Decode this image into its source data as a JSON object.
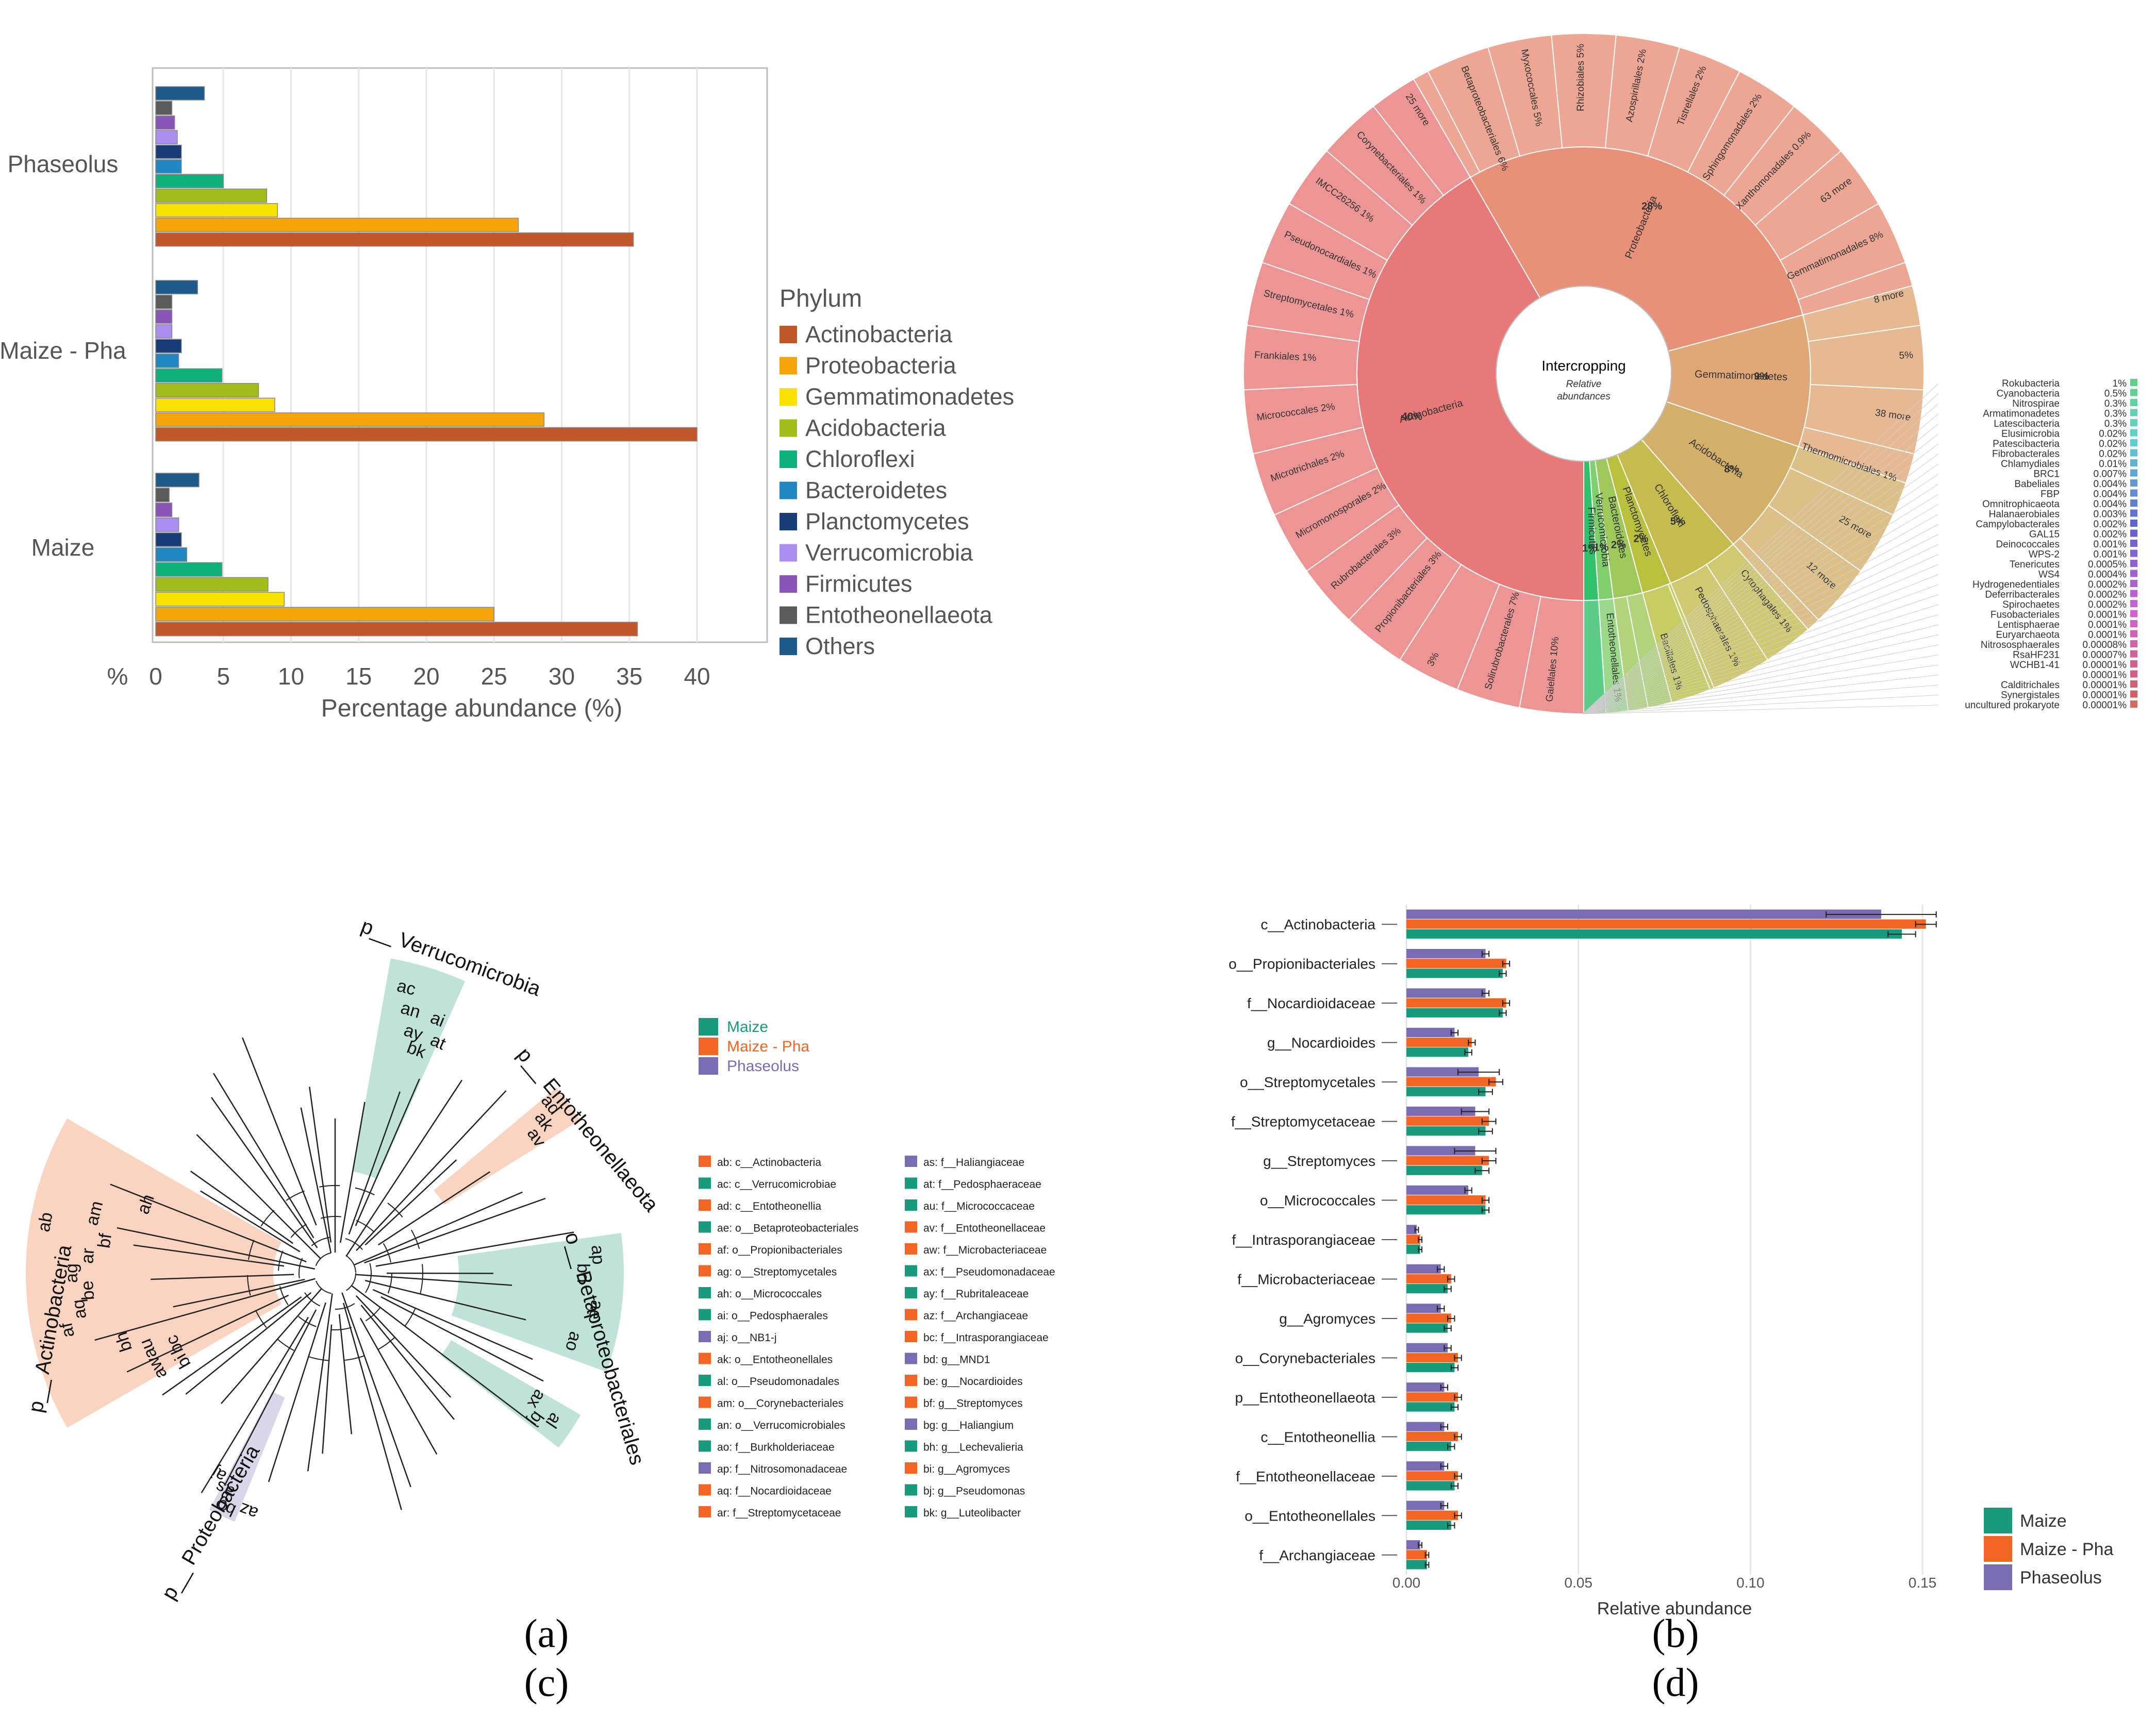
{
  "chart_data": [
    {
      "panel": "(a)",
      "type": "bar",
      "orientation": "horizontal",
      "categories": [
        "Phaseolus",
        "Maize - Pha",
        "Maize"
      ],
      "xlabel": "Percentage abundance (%)",
      "axis_unit_label": "%",
      "xlim": [
        0,
        40
      ],
      "xticks": [
        "0",
        "5",
        "10",
        "15",
        "20",
        "25",
        "30",
        "35",
        "40"
      ],
      "legend_title": "Phylum",
      "grid": "vertical",
      "series": [
        {
          "name": "Actinobacteria",
          "color": "#c0582a",
          "values": [
            35.3,
            40.0,
            35.6
          ]
        },
        {
          "name": "Proteobacteria",
          "color": "#f5a40a",
          "values": [
            26.8,
            28.7,
            25.0
          ]
        },
        {
          "name": "Gemmatimonadetes",
          "color": "#f9e100",
          "values": [
            9.0,
            8.8,
            9.5
          ]
        },
        {
          "name": "Acidobacteria",
          "color": "#9fbe1a",
          "values": [
            8.2,
            7.6,
            8.3
          ]
        },
        {
          "name": "Chloroflexi",
          "color": "#10b07e",
          "values": [
            5.0,
            4.9,
            4.9
          ]
        },
        {
          "name": "Bacteroidetes",
          "color": "#1f87c2",
          "values": [
            1.9,
            1.7,
            2.3
          ]
        },
        {
          "name": "Planctomycetes",
          "color": "#163d78",
          "values": [
            1.9,
            1.9,
            1.9
          ]
        },
        {
          "name": "Verrucomicrobia",
          "color": "#a98ef0",
          "values": [
            1.6,
            1.2,
            1.7
          ]
        },
        {
          "name": "Firmicutes",
          "color": "#8a55b7",
          "values": [
            1.4,
            1.2,
            1.2
          ]
        },
        {
          "name": "Entotheonellaeota",
          "color": "#5a5a5a",
          "values": [
            1.2,
            1.2,
            1.0
          ]
        },
        {
          "name": "Others",
          "color": "#1e5b8c",
          "values": [
            3.6,
            3.1,
            3.2
          ]
        }
      ]
    },
    {
      "panel": "(b)",
      "type": "pie",
      "subtype": "krona",
      "center_title": "Intercropping",
      "center_subtitle": "Relative abundances",
      "inner_ring": [
        {
          "label": "Actinobacteria",
          "pct": "40%",
          "value": 40,
          "color": "#e77a79"
        },
        {
          "label": "Proteobacteria",
          "pct": "28%",
          "value": 28,
          "color": "#e99079"
        },
        {
          "label": "Gemmatimonadetes",
          "pct": "9%",
          "value": 9,
          "color": "#e0a777"
        },
        {
          "label": "Acidobacteria",
          "pct": "8%",
          "value": 8,
          "color": "#d3b06a"
        },
        {
          "label": "Chloroflexi",
          "pct": "5%",
          "value": 5,
          "color": "#c5bc4d"
        },
        {
          "label": "Planctomycetes",
          "pct": "2%",
          "value": 2,
          "color": "#b8c03e"
        },
        {
          "label": "Bacteroidetes",
          "pct": "2%",
          "value": 2,
          "color": "#9dc95a"
        },
        {
          "label": "Verrucomicrobia",
          "pct": "1%",
          "value": 1,
          "color": "#7fcf6c"
        },
        {
          "label": "Firmicutes",
          "pct": "1%",
          "value": 1,
          "color": "#33c06a"
        }
      ],
      "outer_labels": [
        {
          "label": "Gaiellales",
          "pct": "10%"
        },
        {
          "label": "Solirubrobacterales",
          "pct": "7%"
        },
        {
          "label": "",
          "pct": "3%"
        },
        {
          "label": "Propionibacteriales",
          "pct": "3%"
        },
        {
          "label": "Rubrobacterales",
          "pct": "3%"
        },
        {
          "label": "Micromonosporales",
          "pct": "2%"
        },
        {
          "label": "Microtrichales",
          "pct": "2%"
        },
        {
          "label": "Micrococcales",
          "pct": "2%"
        },
        {
          "label": "Frankiales",
          "pct": "1%"
        },
        {
          "label": "Streptomycetales",
          "pct": "1%"
        },
        {
          "label": "Pseudonocardiales",
          "pct": "1%"
        },
        {
          "label": "IMCC26256",
          "pct": "1%"
        },
        {
          "label": "Corynebacteriales",
          "pct": "1%"
        },
        {
          "label": "25 more",
          "pct": ""
        },
        {
          "label": "Betaproteobacteriales",
          "pct": "6%"
        },
        {
          "label": "Myxococcales",
          "pct": "5%"
        },
        {
          "label": "Rhizobiales",
          "pct": "5%"
        },
        {
          "label": "Azospirillales",
          "pct": "2%"
        },
        {
          "label": "Tistrellales",
          "pct": "2%"
        },
        {
          "label": "Sphingomonadales",
          "pct": "2%"
        },
        {
          "label": "Xanthomonadales",
          "pct": "0.9%"
        },
        {
          "label": "63 more",
          "pct": ""
        },
        {
          "label": "Gemmatimonadales",
          "pct": "8%"
        },
        {
          "label": "8 more",
          "pct": ""
        },
        {
          "label": "",
          "pct": "5%"
        },
        {
          "label": "38 more",
          "pct": ""
        },
        {
          "label": "Thermomicrobiales",
          "pct": "1%"
        },
        {
          "label": "25 more",
          "pct": ""
        },
        {
          "label": "12 more",
          "pct": ""
        },
        {
          "label": "Cytophagales",
          "pct": "1%"
        },
        {
          "label": "Pedosphaerales",
          "pct": "1%"
        },
        {
          "label": "Bacillales",
          "pct": "1%"
        },
        {
          "label": "Entotheonellales",
          "pct": "1%"
        }
      ],
      "minor_taxa": [
        {
          "name": "Rokubacteria",
          "pct": "1%"
        },
        {
          "name": "Cyanobacteria",
          "pct": "0.5%"
        },
        {
          "name": "Nitrospirae",
          "pct": "0.3%"
        },
        {
          "name": "Armatimonadetes",
          "pct": "0.3%"
        },
        {
          "name": "Latescibacteria",
          "pct": "0.3%"
        },
        {
          "name": "Elusimicrobia",
          "pct": "0.02%"
        },
        {
          "name": "Patescibacteria",
          "pct": "0.02%"
        },
        {
          "name": "Fibrobacterales",
          "pct": "0.02%"
        },
        {
          "name": "Chlamydiales",
          "pct": "0.01%"
        },
        {
          "name": "BRC1",
          "pct": "0.007%"
        },
        {
          "name": "Babeliales",
          "pct": "0.004%"
        },
        {
          "name": "FBP",
          "pct": "0.004%"
        },
        {
          "name": "Omnitrophicaeota",
          "pct": "0.004%"
        },
        {
          "name": "Halanaerobiales",
          "pct": "0.003%"
        },
        {
          "name": "Campylobacterales",
          "pct": "0.002%"
        },
        {
          "name": "GAL15",
          "pct": "0.002%"
        },
        {
          "name": "Deinococcales",
          "pct": "0.001%"
        },
        {
          "name": "WPS-2",
          "pct": "0.001%"
        },
        {
          "name": "Tenericutes",
          "pct": "0.0005%"
        },
        {
          "name": "WS4",
          "pct": "0.0004%"
        },
        {
          "name": "Hydrogenedentiales",
          "pct": "0.0002%"
        },
        {
          "name": "Deferribacterales",
          "pct": "0.0002%"
        },
        {
          "name": "Spirochaetes",
          "pct": "0.0002%"
        },
        {
          "name": "Fusobacteriales",
          "pct": "0.0001%"
        },
        {
          "name": "Lentisphaerae",
          "pct": "0.0001%"
        },
        {
          "name": "Euryarchaeota",
          "pct": "0.0001%"
        },
        {
          "name": "Nitrososphaerales",
          "pct": "0.00008%"
        },
        {
          "name": "RsaHF231",
          "pct": "0.00007%"
        },
        {
          "name": "WCHB1-41",
          "pct": "0.00001%"
        },
        {
          "name": "",
          "pct": "0.00001%"
        },
        {
          "name": "Calditrichales",
          "pct": "0.00001%"
        },
        {
          "name": "Synergistales",
          "pct": "0.00001%"
        },
        {
          "name": "uncultured prokaryote",
          "pct": "0.00001%"
        }
      ]
    },
    {
      "panel": "(c)",
      "type": "other",
      "subtype": "cladogram",
      "legend": [
        {
          "name": "Maize",
          "color": "#1a9a7c"
        },
        {
          "name": "Maize - Pha",
          "color": "#f26522"
        },
        {
          "name": "Phaseolus",
          "color": "#7a6bb3"
        }
      ],
      "clade_labels": [
        "p__ Verrucomicrobia",
        "p__ Entotheonellaeota",
        "o__ Betaproteobacteriales",
        "p__ Actinobacteria",
        "p__ Proteobacteria"
      ],
      "node_labels": [
        {
          "code": "ac",
          "group": "Maize"
        },
        {
          "code": "an",
          "group": "Maize"
        },
        {
          "code": "ay",
          "group": "Maize"
        },
        {
          "code": "bk",
          "group": "Maize"
        },
        {
          "code": "ai",
          "group": "Maize"
        },
        {
          "code": "at",
          "group": "Maize"
        },
        {
          "code": "ad",
          "group": "Maize - Pha"
        },
        {
          "code": "ak",
          "group": "Maize - Pha"
        },
        {
          "code": "av",
          "group": "Maize - Pha"
        },
        {
          "code": "ap",
          "group": "Phaseolus"
        },
        {
          "code": "bd",
          "group": "Phaseolus"
        },
        {
          "code": "ae",
          "group": "Maize"
        },
        {
          "code": "ao",
          "group": "Maize"
        },
        {
          "code": "al",
          "group": "Maize"
        },
        {
          "code": "bj",
          "group": "Maize"
        },
        {
          "code": "ax",
          "group": "Maize"
        },
        {
          "code": "ab",
          "group": "Maize - Pha"
        },
        {
          "code": "af",
          "group": "Maize - Pha"
        },
        {
          "code": "aq",
          "group": "Maize - Pha"
        },
        {
          "code": "be",
          "group": "Maize - Pha"
        },
        {
          "code": "ag",
          "group": "Maize - Pha"
        },
        {
          "code": "ar",
          "group": "Maize - Pha"
        },
        {
          "code": "bf",
          "group": "Maize - Pha"
        },
        {
          "code": "am",
          "group": "Maize - Pha"
        },
        {
          "code": "bh",
          "group": "Maize"
        },
        {
          "code": "au",
          "group": "Maize"
        },
        {
          "code": "bc",
          "group": "Maize - Pha"
        },
        {
          "code": "aw",
          "group": "Maize - Pha"
        },
        {
          "code": "bi",
          "group": "Maize - Pha"
        },
        {
          "code": "ah",
          "group": "Maize"
        },
        {
          "code": "aj",
          "group": "Phaseolus"
        },
        {
          "code": "az",
          "group": "Maize - Pha"
        },
        {
          "code": "bg",
          "group": "Phaseolus"
        },
        {
          "code": "as",
          "group": "Phaseolus"
        }
      ],
      "key_entries": [
        {
          "code": "ab",
          "text": "ab: c__Actinobacteria",
          "group": "Maize - Pha"
        },
        {
          "code": "ac",
          "text": "ac: c__Verrucomicrobiae",
          "group": "Maize"
        },
        {
          "code": "ad",
          "text": "ad: c__Entotheonellia",
          "group": "Maize - Pha"
        },
        {
          "code": "ae",
          "text": "ae: o__Betaproteobacteriales",
          "group": "Maize"
        },
        {
          "code": "af",
          "text": "af: o__Propionibacteriales",
          "group": "Maize - Pha"
        },
        {
          "code": "ag",
          "text": "ag: o__Streptomycetales",
          "group": "Maize - Pha"
        },
        {
          "code": "ah",
          "text": "ah: o__Micrococcales",
          "group": "Maize"
        },
        {
          "code": "ai",
          "text": "ai: o__Pedosphaerales",
          "group": "Maize"
        },
        {
          "code": "aj",
          "text": "aj: o__NB1-j",
          "group": "Phaseolus"
        },
        {
          "code": "ak",
          "text": "ak: o__Entotheonellales",
          "group": "Maize - Pha"
        },
        {
          "code": "al",
          "text": "al: o__Pseudomonadales",
          "group": "Maize"
        },
        {
          "code": "am",
          "text": "am: o__Corynebacteriales",
          "group": "Maize - Pha"
        },
        {
          "code": "an",
          "text": "an: o__Verrucomicrobiales",
          "group": "Maize"
        },
        {
          "code": "ao",
          "text": "ao: f__Burkholderiaceae",
          "group": "Maize"
        },
        {
          "code": "ap",
          "text": "ap: f__Nitrosomonadaceae",
          "group": "Phaseolus"
        },
        {
          "code": "aq",
          "text": "aq: f__Nocardioidaceae",
          "group": "Maize - Pha"
        },
        {
          "code": "ar",
          "text": "ar: f__Streptomycetaceae",
          "group": "Maize - Pha"
        },
        {
          "code": "as",
          "text": "as: f__Haliangiaceae",
          "group": "Phaseolus"
        },
        {
          "code": "at",
          "text": "at: f__Pedosphaeraceae",
          "group": "Maize"
        },
        {
          "code": "au",
          "text": "au: f__Micrococcaceae",
          "group": "Maize"
        },
        {
          "code": "av",
          "text": "av: f__Entotheonellaceae",
          "group": "Maize - Pha"
        },
        {
          "code": "aw",
          "text": "aw: f__Microbacteriaceae",
          "group": "Maize - Pha"
        },
        {
          "code": "ax",
          "text": "ax: f__Pseudomonadaceae",
          "group": "Maize"
        },
        {
          "code": "ay",
          "text": "ay: f__Rubritaleaceae",
          "group": "Maize"
        },
        {
          "code": "az",
          "text": "az: f__Archangiaceae",
          "group": "Maize - Pha"
        },
        {
          "code": "bc",
          "text": "bc: f__Intrasporangiaceae",
          "group": "Maize - Pha"
        },
        {
          "code": "bd",
          "text": "bd: g__MND1",
          "group": "Phaseolus"
        },
        {
          "code": "be",
          "text": "be: g__Nocardioides",
          "group": "Maize - Pha"
        },
        {
          "code": "bf",
          "text": "bf: g__Streptomyces",
          "group": "Maize - Pha"
        },
        {
          "code": "bg",
          "text": "bg: g__Haliangium",
          "group": "Phaseolus"
        },
        {
          "code": "bh",
          "text": "bh: g__Lechevalieria",
          "group": "Maize"
        },
        {
          "code": "bi",
          "text": "bi: g__Agromyces",
          "group": "Maize - Pha"
        },
        {
          "code": "bj",
          "text": "bj: g__Pseudomonas",
          "group": "Maize"
        },
        {
          "code": "bk",
          "text": "bk: g__Luteolibacter",
          "group": "Maize"
        }
      ]
    },
    {
      "panel": "(d)",
      "type": "bar",
      "orientation": "horizontal",
      "xlabel": "Relative abundance",
      "xlim": [
        0,
        0.16
      ],
      "xticks": [
        "0.00",
        "0.05",
        "0.10",
        "0.15"
      ],
      "grid": "vertical",
      "categories": [
        "c__Actinobacteria",
        "o__Propionibacteriales",
        "f__Nocardioidaceae",
        "g__Nocardioides",
        "o__Streptomycetales",
        "f__Streptomycetaceae",
        "g__Streptomyces",
        "o__Micrococcales",
        "f__Intrasporangiaceae",
        "f__Microbacteriaceae",
        "g__Agromyces",
        "o__Corynebacteriales",
        "p__Entotheonellaeota",
        "c__Entotheonellia",
        "f__Entotheonellaceae",
        "o__Entotheonellales",
        "f__Archangiaceae"
      ],
      "series": [
        {
          "name": "Maize",
          "color": "#1a9a7c",
          "values": [
            0.144,
            0.028,
            0.028,
            0.018,
            0.023,
            0.023,
            0.022,
            0.023,
            0.004,
            0.012,
            0.012,
            0.014,
            0.014,
            0.013,
            0.014,
            0.013,
            0.006
          ],
          "errors": [
            0.004,
            0.001,
            0.001,
            0.001,
            0.002,
            0.002,
            0.002,
            0.001,
            0.0005,
            0.001,
            0.001,
            0.001,
            0.001,
            0.001,
            0.001,
            0.001,
            0.0005
          ]
        },
        {
          "name": "Maize - Pha",
          "color": "#f26522",
          "values": [
            0.151,
            0.029,
            0.029,
            0.019,
            0.026,
            0.024,
            0.024,
            0.023,
            0.004,
            0.013,
            0.013,
            0.015,
            0.015,
            0.015,
            0.015,
            0.015,
            0.006
          ],
          "errors": [
            0.003,
            0.001,
            0.001,
            0.001,
            0.002,
            0.002,
            0.002,
            0.001,
            0.0005,
            0.001,
            0.001,
            0.001,
            0.001,
            0.001,
            0.001,
            0.001,
            0.0005
          ]
        },
        {
          "name": "Phaseolus",
          "color": "#7a6bb3",
          "values": [
            0.138,
            0.023,
            0.023,
            0.014,
            0.021,
            0.02,
            0.02,
            0.018,
            0.003,
            0.01,
            0.01,
            0.012,
            0.011,
            0.011,
            0.011,
            0.011,
            0.004
          ],
          "errors": [
            0.016,
            0.001,
            0.001,
            0.001,
            0.006,
            0.004,
            0.006,
            0.001,
            0.0005,
            0.001,
            0.001,
            0.001,
            0.001,
            0.001,
            0.001,
            0.001,
            0.0005
          ]
        }
      ]
    }
  ]
}
